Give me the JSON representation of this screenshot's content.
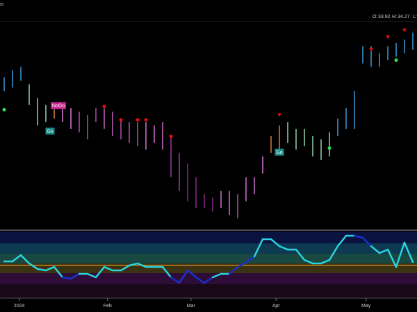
{
  "chart_data": {
    "type": "ohlc",
    "symbol": "ks",
    "ohlc_header": {
      "open_label": "O:",
      "open": 33.92,
      "high_label": "H:",
      "high": 34.27,
      "low_label": "L:"
    },
    "ylim": [
      27.0,
      35.5
    ],
    "xlim": [
      -0.5,
      49.5
    ],
    "high": [
      33.23,
      33.52,
      33.66,
      32.95,
      32.38,
      32.1,
      32.1,
      32.1,
      31.96,
      31.82,
      31.68,
      31.96,
      31.96,
      31.82,
      31.53,
      31.39,
      31.39,
      31.39,
      31.25,
      31.39,
      30.82,
      30.12,
      29.69,
      29.13,
      28.42,
      28.28,
      28.56,
      28.56,
      28.42,
      29.13,
      29.13,
      29.98,
      30.82,
      31.25,
      31.39,
      31.11,
      31.11,
      30.82,
      30.68,
      30.97,
      31.53,
      31.96,
      32.67,
      34.51,
      34.51,
      34.23,
      34.51,
      34.65,
      34.79,
      35.07
    ],
    "low": [
      32.67,
      32.81,
      33.09,
      32.1,
      31.25,
      31.39,
      31.53,
      31.39,
      31.11,
      30.97,
      30.68,
      31.39,
      31.11,
      30.82,
      30.68,
      30.54,
      30.4,
      30.26,
      30.54,
      30.26,
      29.13,
      28.56,
      28.13,
      27.85,
      27.85,
      27.71,
      27.85,
      27.57,
      27.43,
      28.13,
      28.42,
      29.27,
      30.12,
      30.26,
      30.54,
      30.26,
      30.4,
      29.98,
      29.83,
      29.98,
      30.82,
      31.11,
      31.11,
      33.8,
      33.66,
      33.66,
      33.94,
      34.08,
      34.23,
      34.37
    ],
    "colors": [
      "#3a9ad9",
      "#3a9ad9",
      "#3a9ad9",
      "#8fd6a8",
      "#8fd6a8",
      "#8fd6a8",
      "#e0783a",
      "#e07ae0",
      "#e07ae0",
      "#b050b0",
      "#b050b0",
      "#b050b0",
      "#c060c0",
      "#c060c0",
      "#b050b0",
      "#b050b0",
      "#b050b0",
      "#d070d0",
      "#d070d0",
      "#d070d0",
      "#9a3a9a",
      "#9a3a9a",
      "#8a2a8a",
      "#8a2a8a",
      "#8a2a8a",
      "#8a2a8a",
      "#d070d0",
      "#d070d0",
      "#b050b0",
      "#d070d0",
      "#d070d0",
      "#e07ae0",
      "#e0783a",
      "#e0783a",
      "#8fd6a8",
      "#8fd6a8",
      "#8fd6a8",
      "#8fd6a8",
      "#8fd6a8",
      "#8fd6a8",
      "#3a9ad9",
      "#3a9ad9",
      "#3a9ad9",
      "#3a9ad9",
      "#3a9ad9",
      "#3a9ad9",
      "#3a9ad9",
      "#3a9ad9",
      "#3a9ad9",
      "#3a9ad9"
    ],
    "signals": [
      {
        "shape": "dot",
        "color": "#e01010",
        "x": [
          12,
          14,
          16,
          17,
          20
        ],
        "values": [
          32.04,
          31.48,
          31.48,
          31.48,
          30.8
        ]
      },
      {
        "shape": "triangle",
        "color": "#e01010",
        "x": [
          33,
          44,
          46,
          48
        ],
        "values": [
          31.68,
          34.37,
          34.88,
          35.16
        ]
      },
      {
        "shape": "dot",
        "color": "#2ee05a",
        "x": [
          0,
          39,
          47
        ],
        "values": [
          31.9,
          30.32,
          33.94
        ]
      }
    ],
    "annotations": [
      {
        "text": "NoGo",
        "x": 6.5,
        "value": 32.07,
        "color": "#c0208a"
      },
      {
        "text": "Go",
        "x": 5.5,
        "value": 31.02,
        "color": "#1a8a8a"
      },
      {
        "text": "Go",
        "x": 33,
        "value": 30.15,
        "color": "#1a8a8a"
      }
    ],
    "oscillator": {
      "ylim": [
        -6,
        6
      ],
      "zero_color": "#e08a20",
      "values": [
        0.69,
        0.69,
        1.83,
        0.32,
        -0.69,
        -0.95,
        -0.32,
        -2.21,
        -2.46,
        -1.58,
        -1.58,
        -2.21,
        -0.32,
        -0.95,
        -0.95,
        -0.06,
        0.32,
        -0.32,
        -0.32,
        -0.32,
        -2.21,
        -3.22,
        -0.95,
        -2.21,
        -3.22,
        -2.21,
        -1.58,
        -1.58,
        -0.32,
        0.57,
        1.58,
        4.74,
        4.74,
        3.47,
        2.84,
        2.84,
        0.95,
        0.32,
        0.32,
        0.95,
        3.47,
        5.37,
        5.37,
        4.99,
        3.47,
        2.21,
        2.84,
        -0.32,
        4.11,
        0.57
      ],
      "colors": [
        "#2ad4e0",
        "#2ad4e0",
        "#2ad4e0",
        "#2ad4e0",
        "#2ad4e0",
        "#2ad4e0",
        "#2ad4e0",
        "#1830d0",
        "#1830d0",
        "#2ad4e0",
        "#2ad4e0",
        "#2ad4e0",
        "#2ad4e0",
        "#2ad4e0",
        "#2ad4e0",
        "#2ad4e0",
        "#2ad4e0",
        "#2ad4e0",
        "#2ad4e0",
        "#2ad4e0",
        "#1830d0",
        "#1830d0",
        "#1830d0",
        "#1830d0",
        "#1830d0",
        "#2ad4e0",
        "#2ad4e0",
        "#1830d0",
        "#1830d0",
        "#1830d0",
        "#2ad4e0",
        "#2ad4e0",
        "#2ad4e0",
        "#2ad4e0",
        "#2ad4e0",
        "#2ad4e0",
        "#2ad4e0",
        "#2ad4e0",
        "#2ad4e0",
        "#2ad4e0",
        "#2ad4e0",
        "#2ad4e0",
        "#1830d0",
        "#1830d0",
        "#2ad4e0",
        "#2ad4e0",
        "#2ad4e0",
        "#2ad4e0",
        "#2ad4e0",
        "#2ad4e0"
      ]
    },
    "xticks": [
      {
        "value": 1.8,
        "label": "2024"
      },
      {
        "value": 12.4,
        "label": "Feb"
      },
      {
        "value": 22.4,
        "label": "Mar"
      },
      {
        "value": 32.6,
        "label": "Apr"
      },
      {
        "value": 43.4,
        "label": "May"
      }
    ]
  }
}
